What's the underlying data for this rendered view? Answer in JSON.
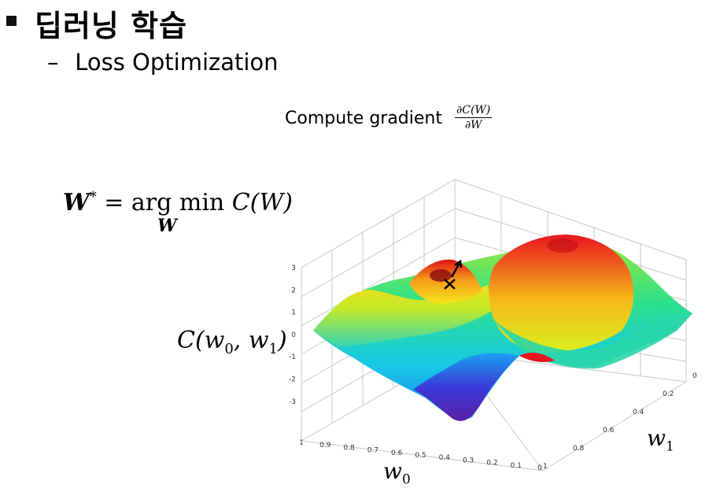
{
  "heading": {
    "title": "딥러닝 학습"
  },
  "subheading": {
    "dash": "–",
    "text": "Loss Optimization"
  },
  "gradient": {
    "text": "Compute gradient",
    "numerator": "∂C(W)",
    "denominator": "∂W"
  },
  "equation": {
    "lhs": "W",
    "star": "*",
    "mid": " = arg min ",
    "rhs": "C(W)",
    "sub": "W"
  },
  "surface_label": {
    "text": "C(w",
    "s0": "0",
    "mid": ", w",
    "s1": "1",
    "end": ")"
  },
  "axis_w1": {
    "text": "w",
    "sub": "1"
  },
  "axis_w0": {
    "text": "w",
    "sub": "0"
  },
  "z_ticks": [
    "3",
    "2",
    "1",
    "0",
    "-1",
    "-2",
    "-3"
  ],
  "w0_ticks": [
    "1",
    "0.9",
    "0.8",
    "0.7",
    "0.6",
    "0.5",
    "0.4",
    "0.3",
    "0.2",
    "0.1",
    "0"
  ],
  "w1_ticks": [
    "0",
    "0.2",
    "0.4",
    "0.6",
    "0.8",
    "1"
  ],
  "colors": {
    "peak": "#e8141e",
    "mid": "#f6e81a",
    "low": "#17d5e2",
    "trough": "#5a1fa8"
  }
}
